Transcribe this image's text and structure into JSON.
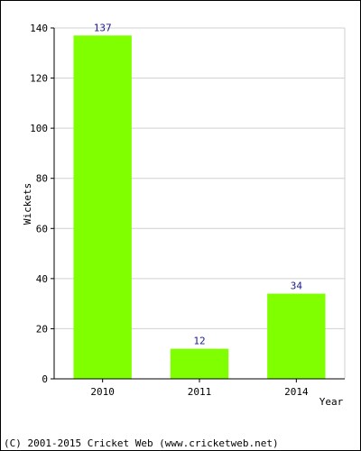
{
  "chart_data": {
    "type": "bar",
    "categories": [
      "2010",
      "2011",
      "2014"
    ],
    "values": [
      137,
      12,
      34
    ],
    "data_labels": [
      "137",
      "12",
      "34"
    ],
    "title": "",
    "xlabel": "Year",
    "ylabel": "Wickets",
    "ylim": [
      0,
      140
    ],
    "yticks": [
      0,
      20,
      40,
      60,
      80,
      100,
      120,
      140
    ],
    "ytick_labels": [
      "0",
      "20",
      "40",
      "60",
      "80",
      "100",
      "120",
      "140"
    ],
    "grid": true,
    "legend": "none",
    "bar_color": "#80ff00",
    "data_label_color": "#1a1a8c",
    "grid_color": "#d0d0d0"
  },
  "footer": {
    "copyright": "(C) 2001-2015 Cricket Web (www.cricketweb.net)"
  }
}
